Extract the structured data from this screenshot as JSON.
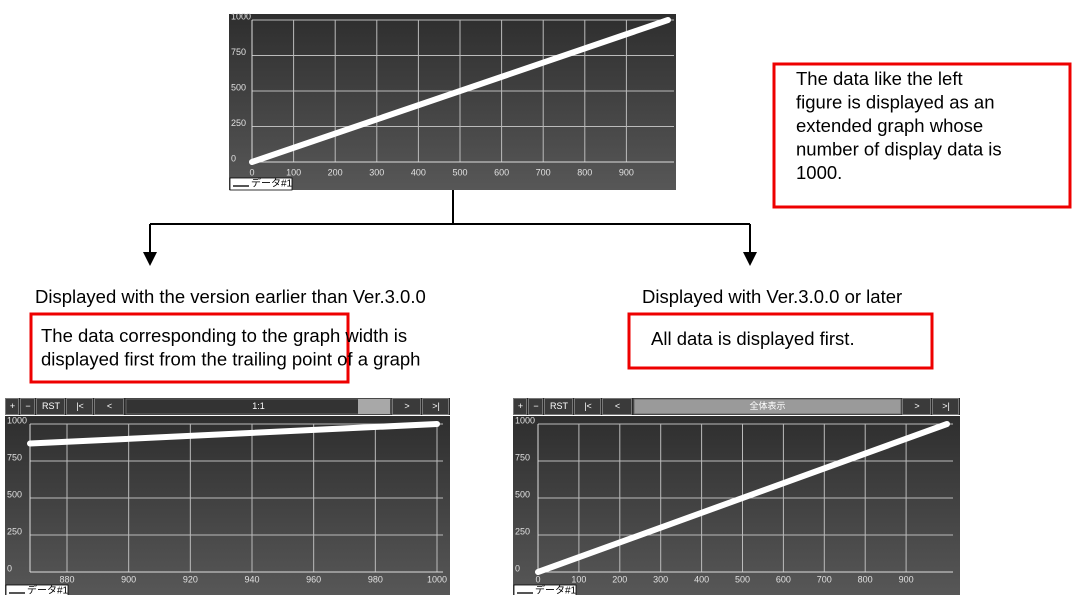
{
  "chart_data": [
    {
      "type": "line",
      "x": [
        0,
        1000
      ],
      "y": [
        0,
        1000
      ],
      "series_name": "データ#1",
      "color": "#ffffff",
      "xlim": [
        0,
        1000
      ],
      "ylim": [
        0,
        1000
      ],
      "xticks": [
        0,
        100,
        200,
        300,
        400,
        500,
        600,
        700,
        800,
        900
      ],
      "yticks": [
        0,
        250,
        500,
        750,
        1000
      ],
      "grid": true
    },
    {
      "type": "line",
      "x": [
        868,
        1000
      ],
      "y": [
        868,
        1000
      ],
      "series_name": "データ#1",
      "color": "#ffffff",
      "xlim": [
        868,
        1000
      ],
      "ylim": [
        0,
        1000
      ],
      "xticks": [
        880,
        900,
        920,
        940,
        960,
        980,
        1000
      ],
      "yticks": [
        0,
        250,
        500,
        750,
        1000
      ],
      "grid": true,
      "toolbar": {
        "left_buttons": [
          "+",
          "−",
          "RST",
          "|<",
          "<"
        ],
        "center": "1:1",
        "right_buttons": [
          ">",
          ">|"
        ]
      }
    },
    {
      "type": "line",
      "x": [
        0,
        1000
      ],
      "y": [
        0,
        1000
      ],
      "series_name": "データ#1",
      "color": "#ffffff",
      "xlim": [
        0,
        1000
      ],
      "ylim": [
        0,
        1000
      ],
      "xticks": [
        0,
        100,
        200,
        300,
        400,
        500,
        600,
        700,
        800,
        900
      ],
      "yticks": [
        0,
        250,
        500,
        750,
        1000
      ],
      "grid": true,
      "toolbar": {
        "left_buttons": [
          "+",
          "−",
          "RST",
          "|<",
          "<"
        ],
        "center": "全体表示",
        "right_buttons": [
          ">",
          ">|"
        ]
      }
    }
  ],
  "note": {
    "lines": [
      "The data like the left",
      "figure is displayed as an",
      "extended graph whose",
      "number of display data is",
      "1000."
    ]
  },
  "branches": [
    {
      "heading": "Displayed with the version earlier than Ver.3.0.0",
      "note": {
        "lines": [
          "The data corresponding to the graph width is",
          "displayed first from the trailing point of a graph"
        ]
      }
    },
    {
      "heading": "Displayed with Ver.3.0.0 or later",
      "note": {
        "lines": [
          "All data is displayed first."
        ]
      }
    }
  ]
}
